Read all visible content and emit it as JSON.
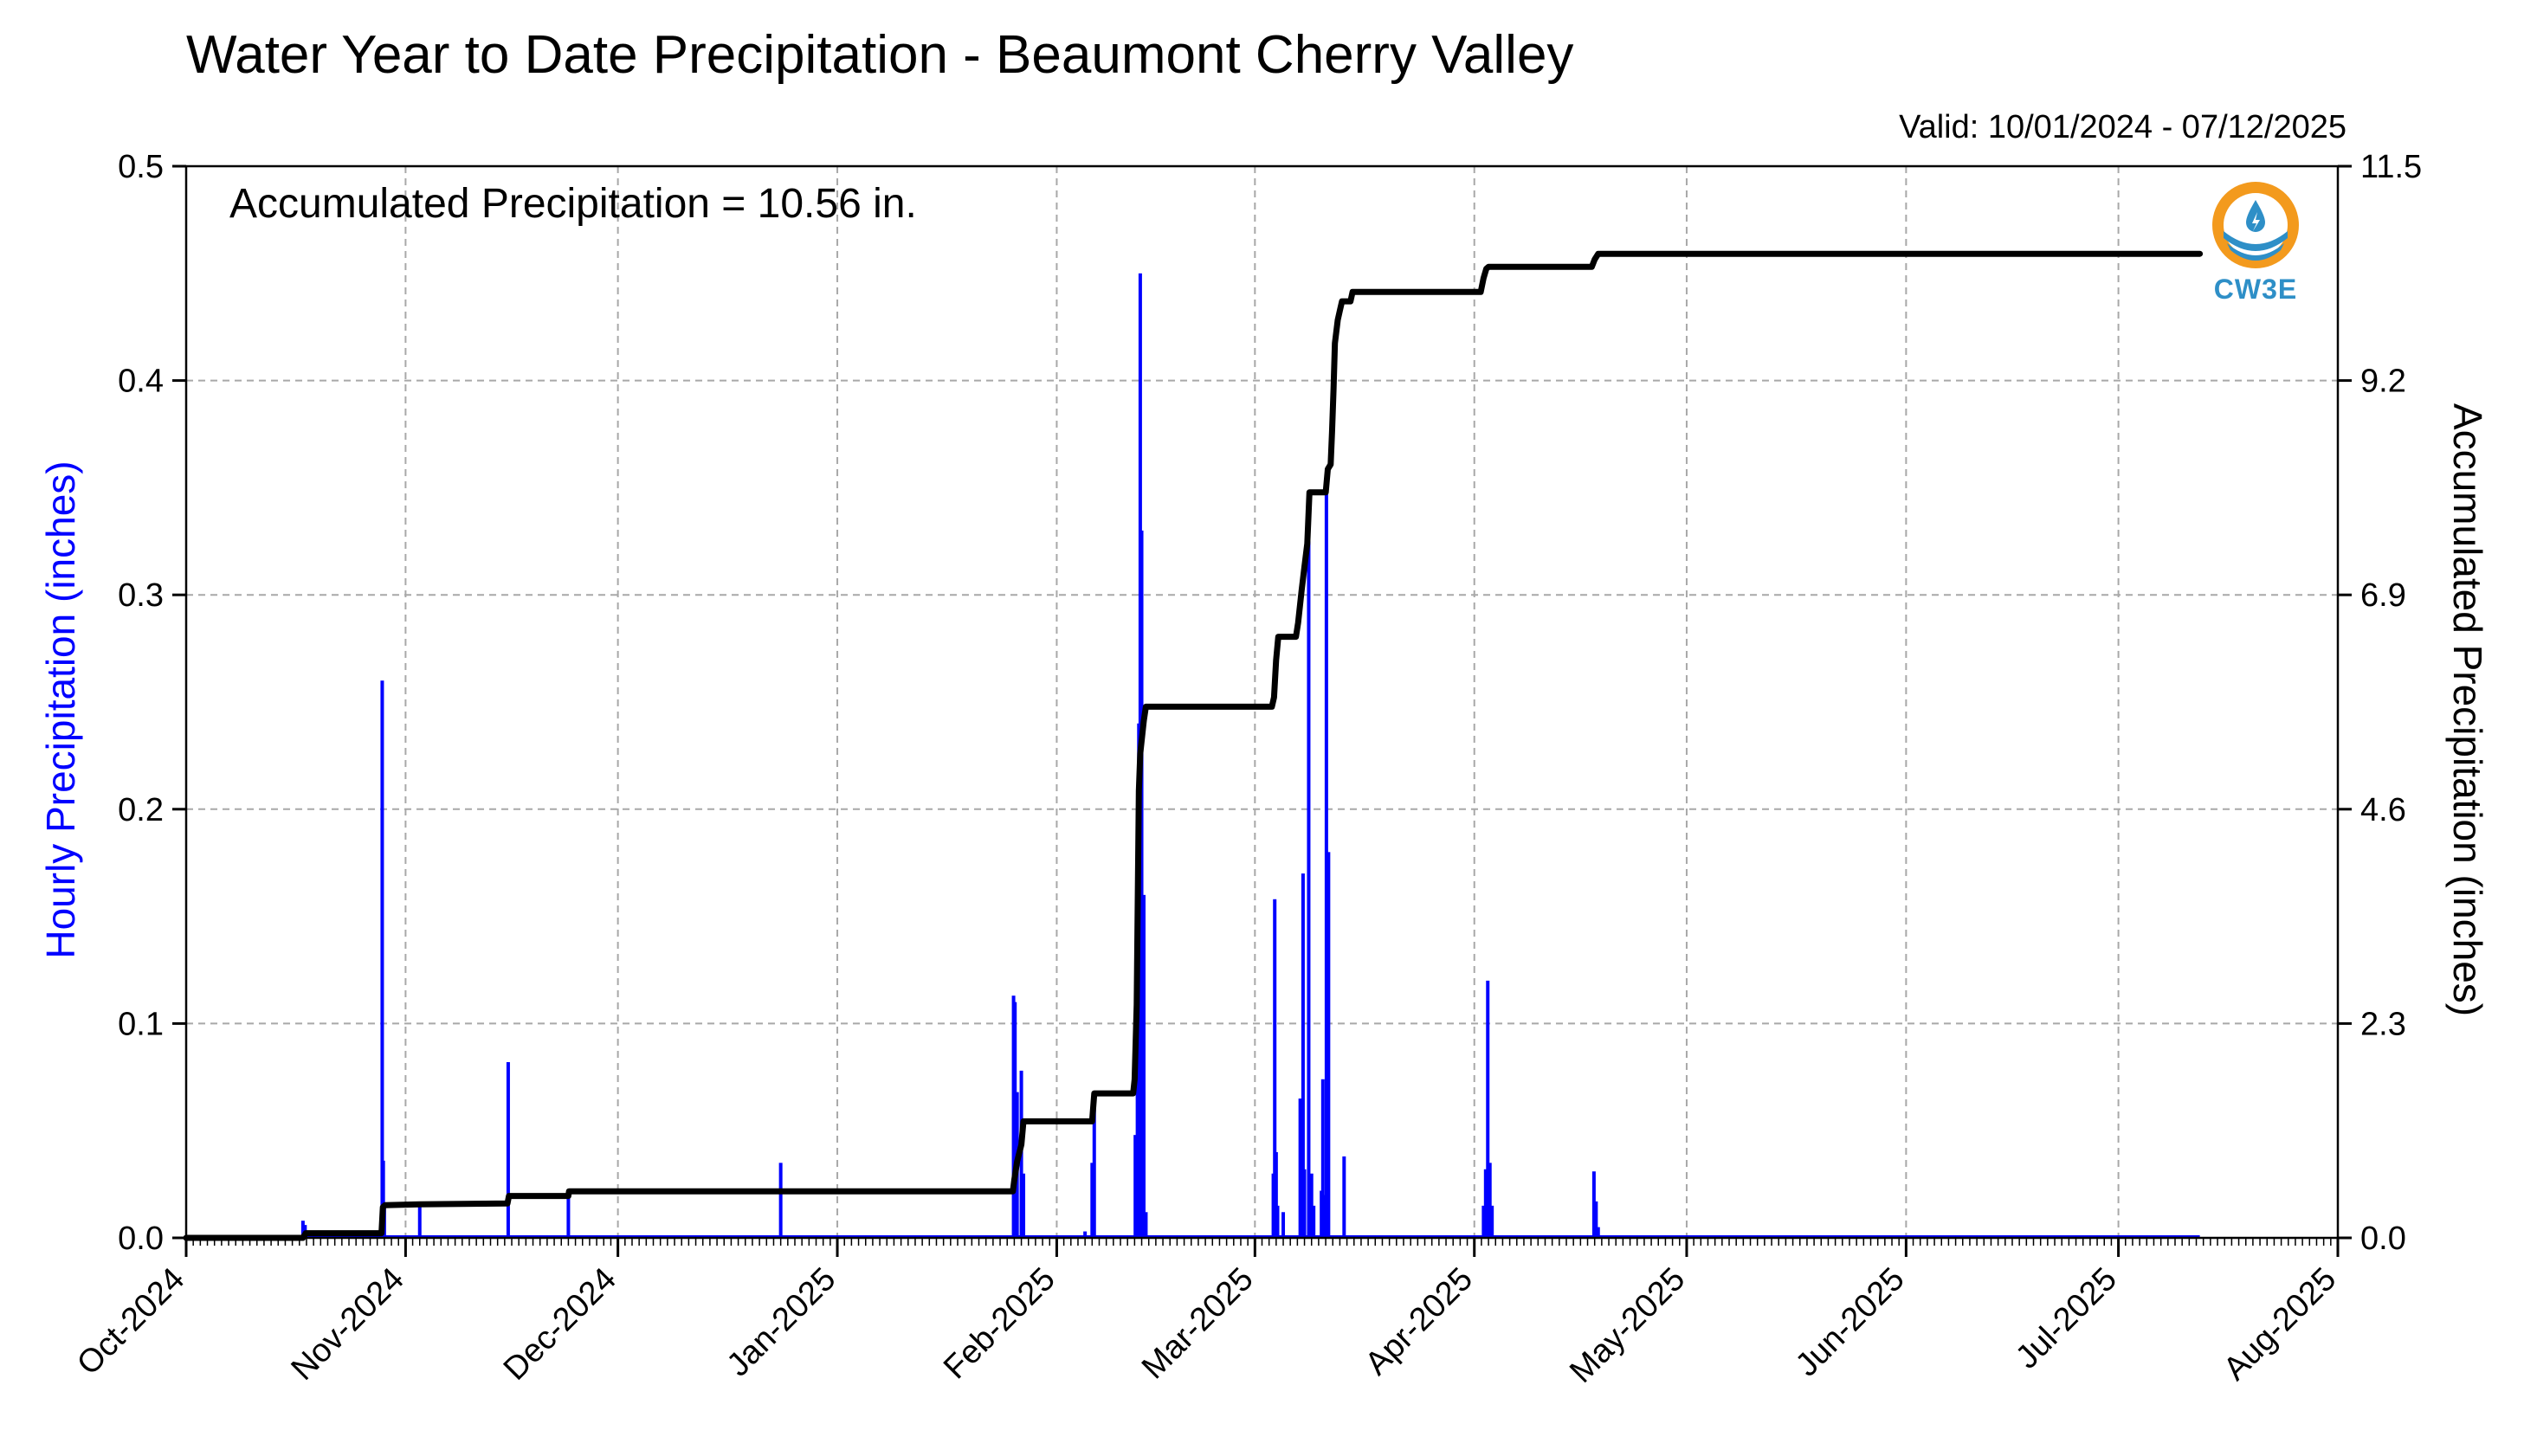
{
  "title": "Water Year to Date Precipitation - Beaumont Cherry Valley",
  "valid_text": "Valid: 10/01/2024 - 07/12/2025",
  "accum_note": "Accumulated Precipitation = 10.56 in.",
  "logo_text": "CW3E",
  "colors": {
    "hourly": "#0000ff",
    "accum": "#000000",
    "grid": "#a8a8a8",
    "logo_orange": "#f39a1d",
    "logo_blue": "#2e8fc7"
  },
  "chart_data": {
    "type": "bar+line",
    "xlabel": "",
    "ylabel": "Hourly Precipitation (inches)",
    "ylabel_right": "Accumulated Precipitation (inches)",
    "ylim": [
      0,
      0.5
    ],
    "ylim_right": [
      0,
      11.5
    ],
    "y_ticks": [
      "0.0",
      "0.1",
      "0.2",
      "0.3",
      "0.4",
      "0.5"
    ],
    "y_ticks_right": [
      "0.0",
      "2.3",
      "4.6",
      "6.9",
      "9.2",
      "11.5"
    ],
    "x_ticks": [
      "Oct-2024",
      "Nov-2024",
      "Dec-2024",
      "Jan-2025",
      "Feb-2025",
      "Mar-2025",
      "Apr-2025",
      "May-2025",
      "Jun-2025",
      "Jul-2025",
      "Aug-2025"
    ],
    "xlim_days": [
      0,
      304
    ],
    "grid": true,
    "hourly_series": {
      "name": "Hourly Precipitation",
      "days": [
        16.5,
        16.8,
        27.7,
        27.85,
        28.0,
        33.0,
        45.5,
        54.0,
        84.0,
        116.9,
        117.1,
        117.4,
        118.0,
        118.3,
        127.0,
        128.0,
        128.3,
        134.1,
        134.4,
        134.6,
        134.8,
        135.0,
        135.3,
        135.6,
        153.6,
        153.8,
        154.0,
        154.2,
        155.0,
        157.4,
        157.8,
        158.0,
        158.6,
        159.0,
        159.3,
        160.4,
        160.6,
        160.8,
        161.1,
        161.4,
        163.6,
        183.3,
        183.6,
        183.9,
        184.2,
        184.5,
        198.9,
        199.2,
        199.5
      ],
      "values": [
        0.008,
        0.006,
        0.26,
        0.036,
        0.015,
        0.016,
        0.082,
        0.02,
        0.035,
        0.113,
        0.11,
        0.068,
        0.078,
        0.03,
        0.003,
        0.035,
        0.06,
        0.048,
        0.196,
        0.24,
        0.45,
        0.33,
        0.16,
        0.012,
        0.03,
        0.158,
        0.04,
        0.015,
        0.012,
        0.065,
        0.17,
        0.032,
        0.325,
        0.03,
        0.015,
        0.022,
        0.074,
        0.02,
        0.35,
        0.18,
        0.038,
        0.015,
        0.032,
        0.12,
        0.035,
        0.015,
        0.031,
        0.017,
        0.005
      ]
    },
    "accum_series": {
      "name": "Accumulated Precipitation",
      "points": [
        [
          0,
          0
        ],
        [
          16.5,
          0
        ],
        [
          16.9,
          0.05
        ],
        [
          27.6,
          0.05
        ],
        [
          27.8,
          0.33
        ],
        [
          28.1,
          0.35
        ],
        [
          33,
          0.36
        ],
        [
          45.4,
          0.37
        ],
        [
          45.6,
          0.45
        ],
        [
          54,
          0.45
        ],
        [
          54.1,
          0.5
        ],
        [
          116.8,
          0.5
        ],
        [
          117,
          0.62
        ],
        [
          117.4,
          0.82
        ],
        [
          118,
          1.0
        ],
        [
          118.3,
          1.25
        ],
        [
          128,
          1.25
        ],
        [
          128.3,
          1.55
        ],
        [
          133.8,
          1.55
        ],
        [
          134,
          1.7
        ],
        [
          134.3,
          2.5
        ],
        [
          134.6,
          4.8
        ],
        [
          134.8,
          5.2
        ],
        [
          135.3,
          5.55
        ],
        [
          135.6,
          5.7
        ],
        [
          153.4,
          5.7
        ],
        [
          153.7,
          5.8
        ],
        [
          154,
          6.2
        ],
        [
          154.3,
          6.45
        ],
        [
          156.8,
          6.45
        ],
        [
          157.1,
          6.6
        ],
        [
          157.6,
          6.95
        ],
        [
          158,
          7.2
        ],
        [
          158.4,
          7.45
        ],
        [
          158.7,
          8.0
        ],
        [
          161,
          8.0
        ],
        [
          161.3,
          8.25
        ],
        [
          161.7,
          8.3
        ],
        [
          161.9,
          8.65
        ],
        [
          162.1,
          9.1
        ],
        [
          162.3,
          9.6
        ],
        [
          162.7,
          9.85
        ],
        [
          163,
          9.95
        ],
        [
          163.3,
          10.05
        ],
        [
          164.5,
          10.05
        ],
        [
          164.8,
          10.15
        ],
        [
          182.9,
          10.15
        ],
        [
          183.3,
          10.3
        ],
        [
          183.7,
          10.4
        ],
        [
          184,
          10.42
        ],
        [
          198.6,
          10.42
        ],
        [
          199,
          10.5
        ],
        [
          199.5,
          10.56
        ],
        [
          284.5,
          10.56
        ]
      ]
    }
  }
}
